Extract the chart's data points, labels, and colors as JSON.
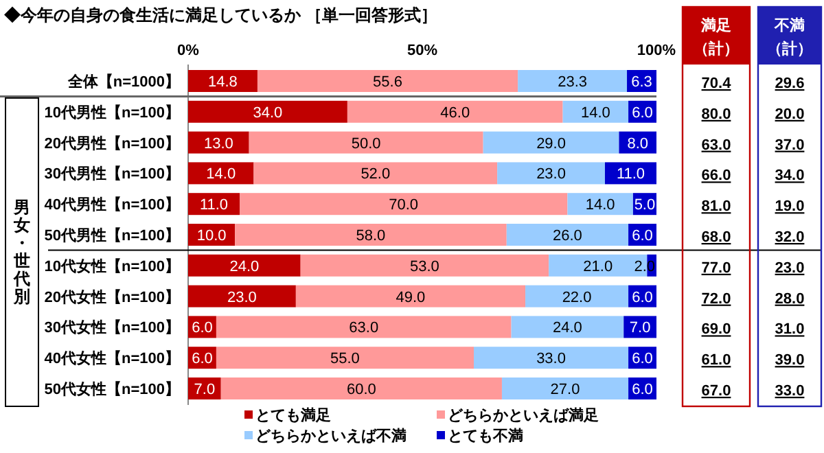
{
  "chart_data": {
    "type": "bar",
    "orientation": "horizontal",
    "stacked": true,
    "title": "◆今年の自身の食生活に満足しているか ［単一回答形式］",
    "categories": [
      "全体【n=1000】",
      "10代男性【n=100】",
      "20代男性【n=100】",
      "30代男性【n=100】",
      "40代男性【n=100】",
      "50代男性【n=100】",
      "10代女性【n=100】",
      "20代女性【n=100】",
      "30代女性【n=100】",
      "40代女性【n=100】",
      "50代女性【n=100】"
    ],
    "series": [
      {
        "name": "とても満足",
        "color": "#c00000",
        "values": [
          14.8,
          34.0,
          13.0,
          14.0,
          11.0,
          10.0,
          24.0,
          23.0,
          6.0,
          6.0,
          7.0
        ],
        "value_labels": [
          "14.8",
          "34.0",
          "13.0",
          "14.0",
          "11.0",
          "10.0",
          "24.0",
          "23.0",
          "6.0",
          "6.0",
          "7.0"
        ]
      },
      {
        "name": "どちらかといえば満足",
        "color": "#ff9999",
        "values": [
          55.6,
          46.0,
          50.0,
          52.0,
          70.0,
          58.0,
          53.0,
          49.0,
          63.0,
          55.0,
          60.0
        ],
        "value_labels": [
          "55.6",
          "46.0",
          "50.0",
          "52.0",
          "70.0",
          "58.0",
          "53.0",
          "49.0",
          "63.0",
          "55.0",
          "60.0"
        ]
      },
      {
        "name": "どちらかといえば不満",
        "color": "#99ccff",
        "values": [
          23.3,
          14.0,
          29.0,
          23.0,
          14.0,
          26.0,
          21.0,
          22.0,
          24.0,
          33.0,
          27.0
        ],
        "value_labels": [
          "23.3",
          "14.0",
          "29.0",
          "23.0",
          "14.0",
          "26.0",
          "21.0",
          "22.0",
          "24.0",
          "33.0",
          "27.0"
        ]
      },
      {
        "name": "とても不満",
        "color": "#0000cc",
        "values": [
          6.3,
          6.0,
          8.0,
          11.0,
          5.0,
          6.0,
          2.0,
          6.0,
          7.0,
          6.0,
          6.0
        ],
        "value_labels": [
          "6.3",
          "6.0",
          "8.0",
          "11.0",
          "5.0",
          "6.0",
          "2.0",
          "6.0",
          "7.0",
          "6.0",
          "6.0"
        ]
      }
    ],
    "xlim": [
      0,
      100
    ],
    "xticks": [
      {
        "value": 0,
        "label": "0%"
      },
      {
        "value": 50,
        "label": "50%"
      },
      {
        "value": 100,
        "label": "100%"
      }
    ],
    "legend": "bottom",
    "annotations": [
      "満足",
      "（計）",
      "不満",
      "（計）",
      "男女・世代別",
      "70.4",
      "80.0",
      "63.0",
      "66.0",
      "81.0",
      "68.0",
      "77.0",
      "72.0",
      "69.0",
      "61.0",
      "67.0",
      "29.6",
      "20.0",
      "37.0",
      "34.0",
      "19.0",
      "32.0",
      "23.0",
      "28.0",
      "31.0",
      "39.0",
      "33.0"
    ]
  }
}
